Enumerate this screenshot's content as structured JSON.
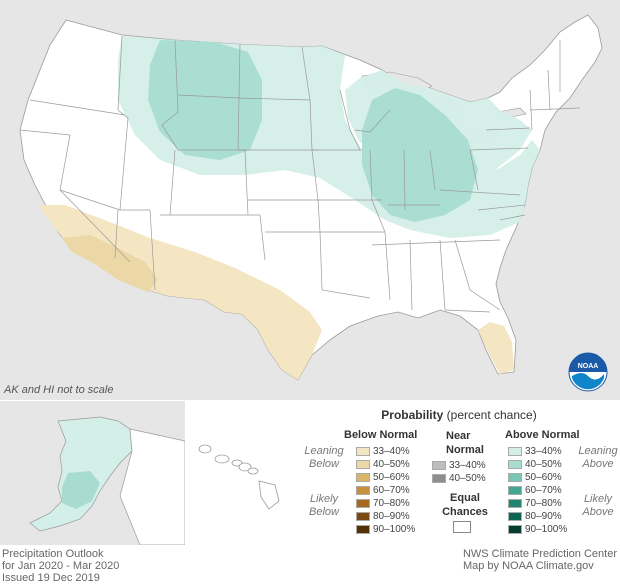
{
  "map_note": "AK and HI not to scale",
  "legend": {
    "title": "Probability",
    "title_sub": "(percent chance)",
    "below_normal": {
      "heading": "Below Normal",
      "leaning_label": "Leaning Below",
      "likely_label": "Likely Below",
      "bins": [
        {
          "label": "33–40%",
          "color": "#f4e6c2"
        },
        {
          "label": "40–50%",
          "color": "#ecd8a6"
        },
        {
          "label": "50–60%",
          "color": "#d9b567"
        },
        {
          "label": "60–70%",
          "color": "#c98f3a"
        },
        {
          "label": "70–80%",
          "color": "#a8681f"
        },
        {
          "label": "80–90%",
          "color": "#7d4812"
        },
        {
          "label": "90–100%",
          "color": "#553005"
        }
      ]
    },
    "near_normal": {
      "heading_line1": "Near",
      "heading_line2": "Normal",
      "bins": [
        {
          "label": "33–40%",
          "color": "#bdbdbd"
        },
        {
          "label": "40–50%",
          "color": "#8e8e8e"
        }
      ]
    },
    "equal_chances": {
      "line1": "Equal",
      "line2": "Chances",
      "color": "#ffffff"
    },
    "above_normal": {
      "heading": "Above Normal",
      "leaning_label": "Leaning Above",
      "likely_label": "Likely Above",
      "bins": [
        {
          "label": "33–40%",
          "color": "#d4eee8"
        },
        {
          "label": "40–50%",
          "color": "#a8dcd1"
        },
        {
          "label": "50–60%",
          "color": "#79c6b6"
        },
        {
          "label": "60–70%",
          "color": "#43a692"
        },
        {
          "label": "70–80%",
          "color": "#21846f"
        },
        {
          "label": "80–90%",
          "color": "#0f6553"
        },
        {
          "label": "90–100%",
          "color": "#063d31"
        }
      ]
    }
  },
  "footer_left": [
    "Precipitation Outlook",
    "for Jan 2020 - Mar 2020",
    "Issued 19 Dec 2019"
  ],
  "footer_right": [
    "NWS Climate Prediction Center",
    "Map by NOAA Climate.gov"
  ],
  "logo_text": "NOAA",
  "colors": {
    "land": "#ffffff",
    "water": "#e6e6e6",
    "state_border": "#9a9a9a",
    "above_33_40": "#d4eee8",
    "above_40_50": "#a8dcd1",
    "below_33_40": "#f4e6c2",
    "below_40_50": "#ecd8a6",
    "noaa_blue": "#1a5aa6"
  }
}
